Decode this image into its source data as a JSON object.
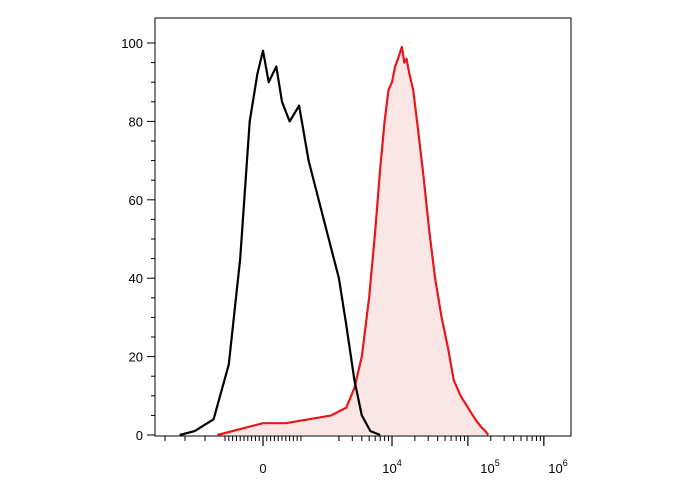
{
  "chart_data": {
    "type": "area",
    "title": "",
    "xlabel": "",
    "ylabel": "",
    "x_scale": "biexponential",
    "ylim": [
      0,
      100
    ],
    "y_ticks": [
      "0",
      "20",
      "40",
      "60",
      "80",
      "100"
    ],
    "x_ticks": [
      {
        "base": "0",
        "exp": ""
      },
      {
        "base": "10",
        "exp": "4"
      },
      {
        "base": "10",
        "exp": "5"
      },
      {
        "base": "10",
        "exp": "6"
      }
    ],
    "grid": false,
    "legend": "none",
    "series": [
      {
        "color": "#000000",
        "fill": "none",
        "points": [
          [
            -2500,
            0
          ],
          [
            -1800,
            1
          ],
          [
            -1300,
            4
          ],
          [
            -900,
            18
          ],
          [
            -600,
            45
          ],
          [
            -350,
            80
          ],
          [
            -150,
            92
          ],
          [
            0,
            98
          ],
          [
            150,
            90
          ],
          [
            350,
            94
          ],
          [
            500,
            85
          ],
          [
            700,
            80
          ],
          [
            950,
            84
          ],
          [
            1200,
            70
          ],
          [
            1600,
            55
          ],
          [
            2000,
            40
          ],
          [
            2500,
            28
          ],
          [
            3200,
            14
          ],
          [
            4000,
            5
          ],
          [
            5200,
            1
          ],
          [
            7000,
            0
          ]
        ]
      },
      {
        "color": "#e8161b",
        "fill": "#fbe6e6",
        "points": [
          [
            -1200,
            0
          ],
          [
            0,
            3
          ],
          [
            600,
            3
          ],
          [
            1200,
            4
          ],
          [
            1800,
            5
          ],
          [
            2500,
            7
          ],
          [
            3200,
            12
          ],
          [
            4000,
            20
          ],
          [
            5000,
            35
          ],
          [
            6000,
            52
          ],
          [
            7000,
            68
          ],
          [
            8000,
            80
          ],
          [
            9000,
            88
          ],
          [
            10000,
            90
          ],
          [
            11000,
            94
          ],
          [
            12000,
            96
          ],
          [
            13500,
            99
          ],
          [
            14500,
            95
          ],
          [
            15500,
            96
          ],
          [
            17000,
            92
          ],
          [
            19000,
            88
          ],
          [
            22000,
            78
          ],
          [
            26000,
            66
          ],
          [
            31000,
            52
          ],
          [
            37000,
            40
          ],
          [
            45000,
            30
          ],
          [
            55000,
            22
          ],
          [
            65000,
            14
          ],
          [
            80000,
            10
          ],
          [
            100000,
            7
          ],
          [
            125000,
            4
          ],
          [
            150000,
            2
          ],
          [
            170000,
            1
          ],
          [
            185000,
            0
          ]
        ]
      }
    ]
  }
}
